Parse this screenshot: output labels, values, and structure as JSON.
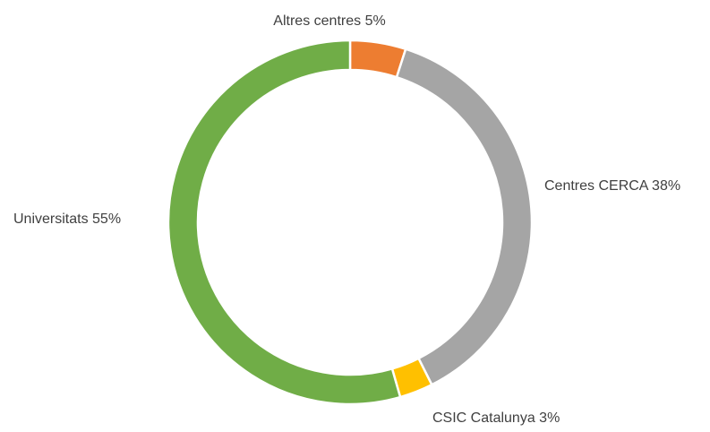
{
  "chart_data": {
    "type": "donut",
    "categories": [
      "Altres centres",
      "Centres CERCA",
      "CSIC Catalunya",
      "Universitats"
    ],
    "values": [
      5,
      38,
      3,
      55
    ],
    "value_labels": [
      "5%",
      "38%",
      "3%",
      "55%"
    ],
    "colors": [
      "#ed7d31",
      "#a5a5a5",
      "#ffc000",
      "#70ad47"
    ]
  }
}
